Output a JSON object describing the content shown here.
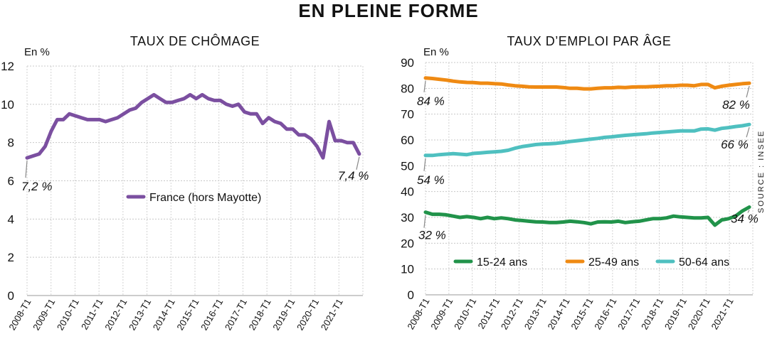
{
  "main_title": "EN PLEINE FORME",
  "source": "SOURCE : INSEE",
  "chart_data": [
    {
      "type": "line",
      "title": "TAUX DE CHÔMAGE",
      "unit_label": "En %",
      "ylim": [
        0,
        12
      ],
      "yticks": [
        "0",
        "2",
        "4",
        "6",
        "8",
        "10",
        "12"
      ],
      "grid": true,
      "legend": "center",
      "x_tick_labels": [
        "2008-T1",
        "2009-T1",
        "2010-T1",
        "2011-T1",
        "2012-T1",
        "2013-T1",
        "2014-T1",
        "2015-T1",
        "2016-T1",
        "2017-T1",
        "2018-T1",
        "2019-T1",
        "2020-T1",
        "2021-T1"
      ],
      "series": [
        {
          "name": "France (hors Mayotte)",
          "color": "#7b4fa0",
          "values": [
            7.2,
            7.3,
            7.4,
            7.8,
            8.6,
            9.2,
            9.2,
            9.5,
            9.4,
            9.3,
            9.2,
            9.2,
            9.2,
            9.1,
            9.2,
            9.3,
            9.5,
            9.7,
            9.8,
            10.1,
            10.3,
            10.5,
            10.3,
            10.1,
            10.1,
            10.2,
            10.3,
            10.5,
            10.3,
            10.5,
            10.3,
            10.2,
            10.2,
            10.0,
            9.9,
            10.0,
            9.6,
            9.5,
            9.5,
            9.0,
            9.3,
            9.1,
            9.0,
            8.7,
            8.7,
            8.4,
            8.4,
            8.2,
            7.8,
            7.2,
            9.1,
            8.1,
            8.1,
            8.0,
            8.0,
            7.4
          ]
        }
      ],
      "annotations": [
        {
          "text": "7,2 %",
          "series": 0,
          "point": "first"
        },
        {
          "text": "7,4 %",
          "series": 0,
          "point": "last"
        }
      ]
    },
    {
      "type": "line",
      "title": "TAUX D’EMPLOI PAR ÂGE",
      "unit_label": "En %",
      "ylim": [
        0,
        90
      ],
      "yticks": [
        "0",
        "10",
        "20",
        "30",
        "40",
        "50",
        "60",
        "70",
        "80",
        "90"
      ],
      "grid": true,
      "legend": "bottom",
      "x_tick_labels": [
        "2008-T1",
        "2009-T1",
        "2010-T1",
        "2011-T1",
        "2012-T1",
        "2013-T1",
        "2014-T1",
        "2015-T1",
        "2016-T1",
        "2017-T1",
        "2018-T1",
        "2019-T1",
        "2020-T1",
        "2021-T1"
      ],
      "series": [
        {
          "name": "15-24 ans",
          "color": "#21934a",
          "values": [
            32.0,
            31.2,
            31.2,
            31.0,
            30.5,
            30.0,
            30.3,
            30.0,
            29.5,
            30.0,
            29.5,
            29.8,
            29.5,
            29.0,
            28.8,
            28.5,
            28.3,
            28.2,
            28.0,
            28.0,
            28.2,
            28.5,
            28.3,
            28.0,
            27.5,
            28.2,
            28.3,
            28.2,
            28.5,
            28.0,
            28.3,
            28.5,
            29.0,
            29.5,
            29.5,
            29.8,
            30.5,
            30.2,
            30.0,
            29.8,
            29.8,
            30.0,
            27.0,
            29.0,
            29.5,
            30.5,
            32.5,
            34.0
          ]
        },
        {
          "name": "25-49 ans",
          "color": "#ef8a13",
          "values": [
            84.0,
            83.8,
            83.5,
            83.2,
            82.8,
            82.5,
            82.3,
            82.2,
            82.0,
            82.0,
            81.8,
            81.7,
            81.3,
            81.0,
            80.8,
            80.6,
            80.5,
            80.5,
            80.5,
            80.5,
            80.3,
            80.0,
            80.0,
            79.8,
            79.8,
            80.0,
            80.2,
            80.2,
            80.4,
            80.3,
            80.5,
            80.6,
            80.6,
            80.7,
            80.8,
            81.0,
            81.0,
            81.2,
            81.2,
            81.0,
            81.5,
            81.5,
            80.2,
            80.8,
            81.2,
            81.5,
            81.8,
            82.0
          ]
        },
        {
          "name": "50-64 ans",
          "color": "#4fc0c0",
          "values": [
            54.0,
            54.0,
            54.3,
            54.5,
            54.7,
            54.5,
            54.3,
            54.8,
            55.0,
            55.2,
            55.4,
            55.6,
            56.0,
            56.8,
            57.4,
            57.8,
            58.2,
            58.4,
            58.5,
            58.7,
            59.0,
            59.4,
            59.7,
            60.0,
            60.3,
            60.6,
            61.0,
            61.2,
            61.5,
            61.8,
            62.0,
            62.2,
            62.4,
            62.7,
            62.9,
            63.1,
            63.3,
            63.5,
            63.5,
            63.5,
            64.2,
            64.3,
            63.8,
            64.5,
            64.8,
            65.2,
            65.5,
            66.0
          ]
        }
      ],
      "annotations": [
        {
          "text": "84 %",
          "series": 1,
          "point": "first"
        },
        {
          "text": "82 %",
          "series": 1,
          "point": "last"
        },
        {
          "text": "54 %",
          "series": 2,
          "point": "first"
        },
        {
          "text": "66 %",
          "series": 2,
          "point": "last"
        },
        {
          "text": "32 %",
          "series": 0,
          "point": "first"
        },
        {
          "text": "34 %",
          "series": 0,
          "point": "last"
        }
      ]
    }
  ]
}
